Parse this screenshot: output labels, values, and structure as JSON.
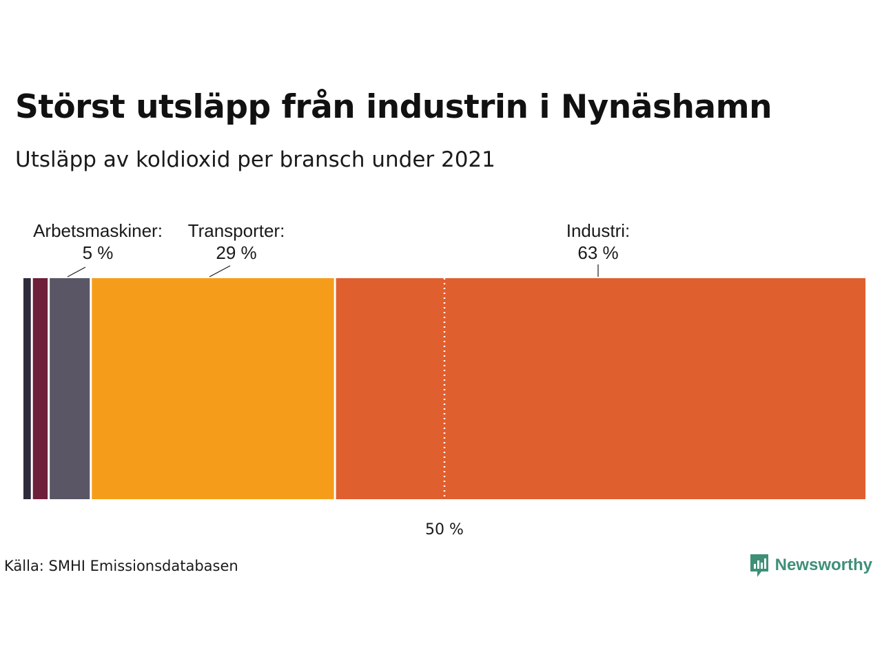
{
  "title": "Störst utsläpp från industrin i Nynäshamn",
  "subtitle": "Utsläpp av koldioxid per bransch under 2021",
  "source": "Källa: SMHI Emissionsdatabasen",
  "brand": {
    "name": "Newsworthy",
    "icon": "newsworthy-logo-icon",
    "color": "#3f8f78"
  },
  "chart_data": {
    "type": "bar",
    "orientation": "stacked-horizontal-100",
    "segments": [
      {
        "value": 1,
        "color": "#2e2b3a"
      },
      {
        "value": 2,
        "color": "#6e1f3a"
      },
      {
        "value": 5,
        "label": "Arbetsmaskiner:",
        "value_label": "5 %",
        "color": "#5a5666"
      },
      {
        "value": 29,
        "label": "Transporter:",
        "value_label": "29 %",
        "color": "#f59d1a"
      },
      {
        "value": 63,
        "label": "Industri:",
        "value_label": "63 %",
        "color": "#e05f2f"
      }
    ],
    "reference_line": {
      "value": 50,
      "label": "50 %",
      "style": "dotted"
    },
    "xlim": [
      0,
      100
    ]
  }
}
